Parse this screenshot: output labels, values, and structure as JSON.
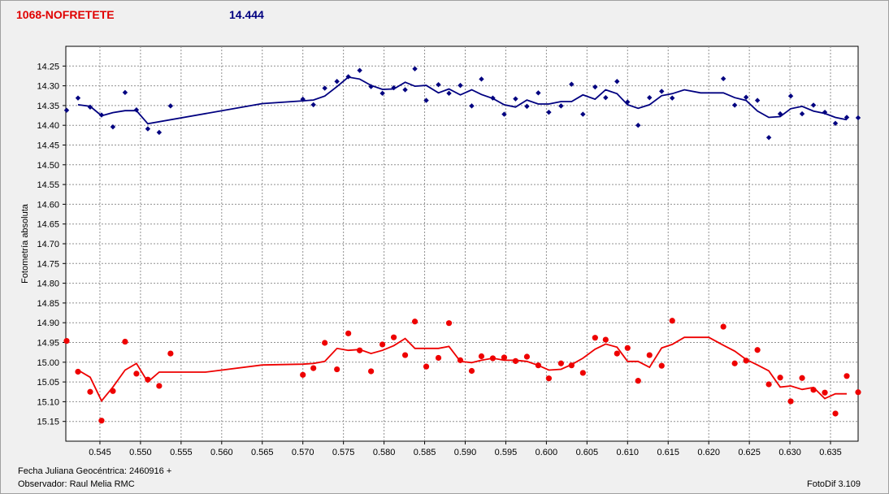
{
  "header": {
    "object_name": "1068-NOFRETETE",
    "magnitude": "14.444"
  },
  "footer": {
    "date_label": "Fecha Juliana Geocéntrica: 2460916 +",
    "observer_label": "Observador: Raul Melia RMC",
    "software": "FotoDif 3.109"
  },
  "chart_data": {
    "type": "scatter",
    "ylabel": "Fotometría absoluta",
    "xlabel": "",
    "xlim": [
      0.5408,
      0.6384
    ],
    "ylim": [
      14.2,
      15.2
    ],
    "y_inverted": true,
    "grid": true,
    "xticks": [
      0.545,
      0.55,
      0.555,
      0.56,
      0.565,
      0.57,
      0.575,
      0.58,
      0.585,
      0.59,
      0.595,
      0.6,
      0.605,
      0.61,
      0.615,
      0.62,
      0.625,
      0.63,
      0.635
    ],
    "yticks": [
      14.25,
      14.3,
      14.35,
      14.4,
      14.45,
      14.5,
      14.55,
      14.6,
      14.65,
      14.7,
      14.75,
      14.8,
      14.85,
      14.9,
      14.95,
      15.0,
      15.05,
      15.1,
      15.15
    ],
    "series": [
      {
        "color": "#000080",
        "marker": "diamond",
        "points": [
          [
            0.5409,
            14.362
          ],
          [
            0.5423,
            14.331
          ],
          [
            0.5438,
            14.354
          ],
          [
            0.5452,
            14.374
          ],
          [
            0.5466,
            14.404
          ],
          [
            0.5481,
            14.317
          ],
          [
            0.5495,
            14.361
          ],
          [
            0.5509,
            14.409
          ],
          [
            0.5523,
            14.418
          ],
          [
            0.5537,
            14.351
          ],
          [
            0.57,
            14.334
          ],
          [
            0.5713,
            14.348
          ],
          [
            0.5727,
            14.306
          ],
          [
            0.5742,
            14.289
          ],
          [
            0.5756,
            14.277
          ],
          [
            0.577,
            14.261
          ],
          [
            0.5784,
            14.302
          ],
          [
            0.5798,
            14.319
          ],
          [
            0.5812,
            14.305
          ],
          [
            0.5826,
            14.31
          ],
          [
            0.5838,
            14.257
          ],
          [
            0.5852,
            14.337
          ],
          [
            0.5867,
            14.297
          ],
          [
            0.588,
            14.319
          ],
          [
            0.5894,
            14.299
          ],
          [
            0.5908,
            14.351
          ],
          [
            0.592,
            14.283
          ],
          [
            0.5934,
            14.331
          ],
          [
            0.5948,
            14.372
          ],
          [
            0.5962,
            14.333
          ],
          [
            0.5976,
            14.352
          ],
          [
            0.599,
            14.318
          ],
          [
            0.6003,
            14.367
          ],
          [
            0.6018,
            14.351
          ],
          [
            0.6031,
            14.296
          ],
          [
            0.6045,
            14.372
          ],
          [
            0.606,
            14.303
          ],
          [
            0.6073,
            14.33
          ],
          [
            0.6087,
            14.289
          ],
          [
            0.61,
            14.341
          ],
          [
            0.6113,
            14.4
          ],
          [
            0.6127,
            14.33
          ],
          [
            0.6142,
            14.314
          ],
          [
            0.6155,
            14.331
          ],
          [
            0.6218,
            14.282
          ],
          [
            0.6232,
            14.349
          ],
          [
            0.6246,
            14.329
          ],
          [
            0.626,
            14.337
          ],
          [
            0.6274,
            14.431
          ],
          [
            0.6288,
            14.371
          ],
          [
            0.6301,
            14.326
          ],
          [
            0.6315,
            14.371
          ],
          [
            0.6329,
            14.349
          ],
          [
            0.6343,
            14.367
          ],
          [
            0.6356,
            14.395
          ],
          [
            0.637,
            14.38
          ],
          [
            0.6384,
            14.381
          ]
        ],
        "trend": [
          [
            0.5423,
            14.348
          ],
          [
            0.5438,
            14.352
          ],
          [
            0.5452,
            14.376
          ],
          [
            0.5466,
            14.368
          ],
          [
            0.5481,
            14.363
          ],
          [
            0.5495,
            14.363
          ],
          [
            0.5509,
            14.396
          ],
          [
            0.565,
            14.345
          ],
          [
            0.57,
            14.338
          ],
          [
            0.5713,
            14.336
          ],
          [
            0.5727,
            14.326
          ],
          [
            0.5742,
            14.302
          ],
          [
            0.5756,
            14.278
          ],
          [
            0.577,
            14.283
          ],
          [
            0.5784,
            14.299
          ],
          [
            0.5798,
            14.309
          ],
          [
            0.5812,
            14.308
          ],
          [
            0.5826,
            14.291
          ],
          [
            0.5838,
            14.301
          ],
          [
            0.5852,
            14.299
          ],
          [
            0.5867,
            14.318
          ],
          [
            0.588,
            14.308
          ],
          [
            0.5894,
            14.323
          ],
          [
            0.5908,
            14.31
          ],
          [
            0.592,
            14.322
          ],
          [
            0.5934,
            14.332
          ],
          [
            0.5948,
            14.348
          ],
          [
            0.5962,
            14.354
          ],
          [
            0.5976,
            14.336
          ],
          [
            0.599,
            14.346
          ],
          [
            0.6003,
            14.346
          ],
          [
            0.6018,
            14.34
          ],
          [
            0.6031,
            14.34
          ],
          [
            0.6045,
            14.323
          ],
          [
            0.606,
            14.334
          ],
          [
            0.6073,
            14.31
          ],
          [
            0.6087,
            14.32
          ],
          [
            0.61,
            14.348
          ],
          [
            0.6113,
            14.357
          ],
          [
            0.6127,
            14.348
          ],
          [
            0.6142,
            14.325
          ],
          [
            0.6155,
            14.32
          ],
          [
            0.617,
            14.31
          ],
          [
            0.619,
            14.318
          ],
          [
            0.6218,
            14.318
          ],
          [
            0.6232,
            14.33
          ],
          [
            0.6246,
            14.337
          ],
          [
            0.626,
            14.364
          ],
          [
            0.6274,
            14.38
          ],
          [
            0.6288,
            14.378
          ],
          [
            0.6301,
            14.358
          ],
          [
            0.6315,
            14.352
          ],
          [
            0.6329,
            14.364
          ],
          [
            0.6343,
            14.37
          ],
          [
            0.6356,
            14.38
          ],
          [
            0.637,
            14.386
          ]
        ]
      },
      {
        "color": "#ee0000",
        "marker": "circle",
        "points": [
          [
            0.5409,
            14.946
          ],
          [
            0.5423,
            15.024
          ],
          [
            0.5438,
            15.075
          ],
          [
            0.5452,
            15.148
          ],
          [
            0.5466,
            15.073
          ],
          [
            0.5481,
            14.948
          ],
          [
            0.5495,
            15.029
          ],
          [
            0.5509,
            15.044
          ],
          [
            0.5523,
            15.06
          ],
          [
            0.5537,
            14.978
          ],
          [
            0.57,
            15.032
          ],
          [
            0.5713,
            15.015
          ],
          [
            0.5727,
            14.951
          ],
          [
            0.5742,
            15.018
          ],
          [
            0.5756,
            14.927
          ],
          [
            0.577,
            14.97
          ],
          [
            0.5784,
            15.023
          ],
          [
            0.5798,
            14.955
          ],
          [
            0.5812,
            14.937
          ],
          [
            0.5826,
            14.982
          ],
          [
            0.5838,
            14.897
          ],
          [
            0.5852,
            15.011
          ],
          [
            0.5867,
            14.989
          ],
          [
            0.588,
            14.901
          ],
          [
            0.5894,
            14.995
          ],
          [
            0.5908,
            15.022
          ],
          [
            0.592,
            14.985
          ],
          [
            0.5934,
            14.99
          ],
          [
            0.5948,
            14.988
          ],
          [
            0.5962,
            14.997
          ],
          [
            0.5976,
            14.986
          ],
          [
            0.599,
            15.008
          ],
          [
            0.6003,
            15.041
          ],
          [
            0.6018,
            15.003
          ],
          [
            0.6031,
            15.008
          ],
          [
            0.6045,
            15.027
          ],
          [
            0.606,
            14.938
          ],
          [
            0.6073,
            14.943
          ],
          [
            0.6087,
            14.978
          ],
          [
            0.61,
            14.964
          ],
          [
            0.6113,
            15.047
          ],
          [
            0.6127,
            14.982
          ],
          [
            0.6142,
            15.009
          ],
          [
            0.6155,
            14.895
          ],
          [
            0.6218,
            14.91
          ],
          [
            0.6232,
            15.003
          ],
          [
            0.6246,
            14.996
          ],
          [
            0.626,
            14.969
          ],
          [
            0.6274,
            15.056
          ],
          [
            0.6288,
            15.039
          ],
          [
            0.6301,
            15.099
          ],
          [
            0.6315,
            15.04
          ],
          [
            0.6329,
            15.07
          ],
          [
            0.6343,
            15.077
          ],
          [
            0.6356,
            15.13
          ],
          [
            0.637,
            15.035
          ],
          [
            0.6384,
            15.076
          ]
        ],
        "trend": [
          [
            0.5423,
            15.02
          ],
          [
            0.5438,
            15.038
          ],
          [
            0.5452,
            15.098
          ],
          [
            0.5466,
            15.063
          ],
          [
            0.5481,
            15.02
          ],
          [
            0.5495,
            15.003
          ],
          [
            0.5509,
            15.05
          ],
          [
            0.5523,
            15.025
          ],
          [
            0.558,
            15.025
          ],
          [
            0.565,
            15.007
          ],
          [
            0.57,
            15.005
          ],
          [
            0.5713,
            15.003
          ],
          [
            0.5727,
            14.998
          ],
          [
            0.5742,
            14.965
          ],
          [
            0.5756,
            14.97
          ],
          [
            0.577,
            14.968
          ],
          [
            0.5784,
            14.978
          ],
          [
            0.5798,
            14.97
          ],
          [
            0.5812,
            14.958
          ],
          [
            0.5826,
            14.94
          ],
          [
            0.5838,
            14.965
          ],
          [
            0.5852,
            14.965
          ],
          [
            0.5867,
            14.965
          ],
          [
            0.588,
            14.96
          ],
          [
            0.5894,
            14.998
          ],
          [
            0.5908,
            15.001
          ],
          [
            0.592,
            14.995
          ],
          [
            0.5934,
            14.99
          ],
          [
            0.5948,
            14.995
          ],
          [
            0.5962,
            14.995
          ],
          [
            0.5976,
            14.998
          ],
          [
            0.599,
            15.008
          ],
          [
            0.6003,
            15.02
          ],
          [
            0.6018,
            15.018
          ],
          [
            0.6031,
            15.006
          ],
          [
            0.6045,
            14.99
          ],
          [
            0.606,
            14.967
          ],
          [
            0.6073,
            14.954
          ],
          [
            0.6087,
            14.962
          ],
          [
            0.61,
            14.998
          ],
          [
            0.6113,
            14.998
          ],
          [
            0.6127,
            15.013
          ],
          [
            0.6142,
            14.964
          ],
          [
            0.6155,
            14.955
          ],
          [
            0.617,
            14.937
          ],
          [
            0.62,
            14.937
          ],
          [
            0.6218,
            14.957
          ],
          [
            0.6232,
            14.972
          ],
          [
            0.6246,
            14.993
          ],
          [
            0.626,
            15.007
          ],
          [
            0.6274,
            15.022
          ],
          [
            0.6288,
            15.063
          ],
          [
            0.6301,
            15.06
          ],
          [
            0.6315,
            15.069
          ],
          [
            0.6329,
            15.064
          ],
          [
            0.6343,
            15.092
          ],
          [
            0.6356,
            15.08
          ],
          [
            0.637,
            15.08
          ]
        ]
      }
    ]
  }
}
